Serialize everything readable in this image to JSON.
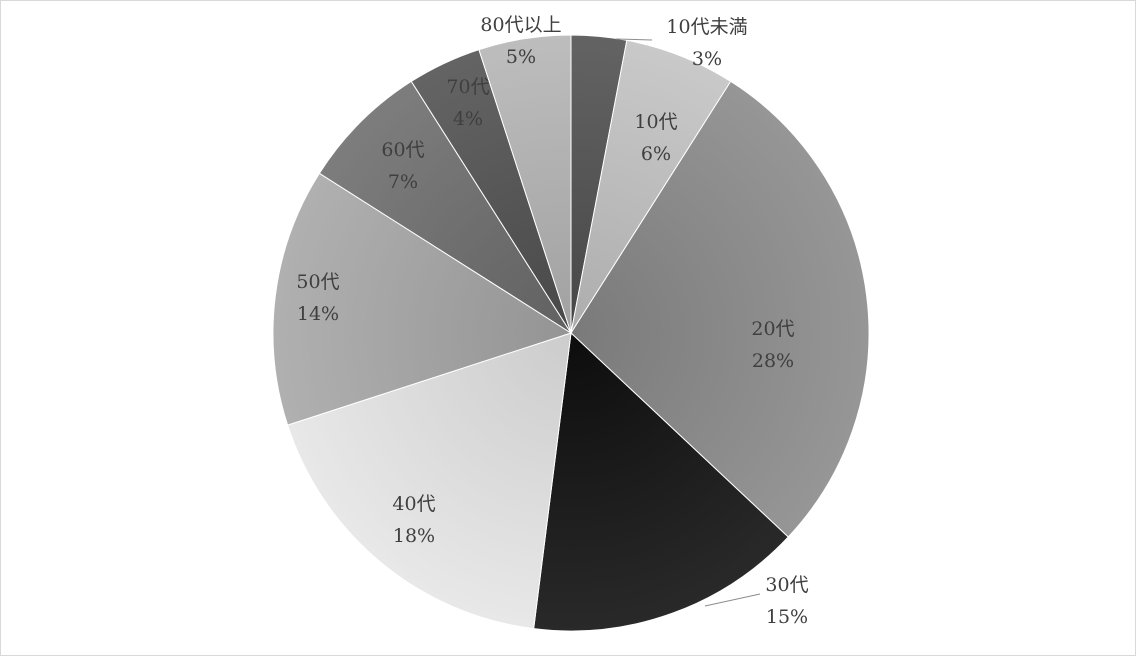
{
  "chart_data": {
    "type": "pie",
    "title": "",
    "start_angle_deg": 0,
    "direction": "clockwise",
    "legend": "none",
    "slices": [
      {
        "label": "10代未満",
        "value": 3,
        "value_label": "3%",
        "color": "#595959"
      },
      {
        "label": "10代",
        "value": 6,
        "value_label": "6%",
        "color": "#bfbfbf"
      },
      {
        "label": "20代",
        "value": 28,
        "value_label": "28%",
        "color": "#8c8c8c"
      },
      {
        "label": "30代",
        "value": 15,
        "value_label": "15%",
        "color": "#1f1f1f"
      },
      {
        "label": "40代",
        "value": 18,
        "value_label": "18%",
        "color": "#dedede"
      },
      {
        "label": "50代",
        "value": 14,
        "value_label": "14%",
        "color": "#a6a6a6"
      },
      {
        "label": "60代",
        "value": 7,
        "value_label": "7%",
        "color": "#737373"
      },
      {
        "label": "70代",
        "value": 4,
        "value_label": "4%",
        "color": "#5a5a5a"
      },
      {
        "label": "80代以上",
        "value": 5,
        "value_label": "5%",
        "color": "#b3b3b3"
      }
    ]
  }
}
